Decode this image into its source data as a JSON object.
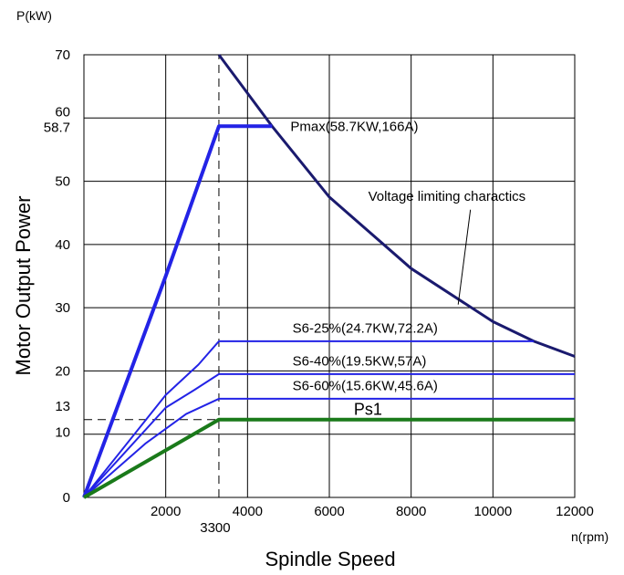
{
  "chart_data": {
    "type": "line",
    "xlabel": "Spindle Speed",
    "ylabel": "Motor Output Power",
    "x_unit": "n(rpm)",
    "y_unit": "P(kW)",
    "xlim": [
      0,
      12000
    ],
    "ylim": [
      0,
      70
    ],
    "x_ticks": [
      {
        "value": 2000,
        "label": "2000"
      },
      {
        "value": 4000,
        "label": "4000"
      },
      {
        "value": 6000,
        "label": "6000"
      },
      {
        "value": 8000,
        "label": "8000"
      },
      {
        "value": 10000,
        "label": "10000"
      },
      {
        "value": 12000,
        "label": "12000"
      }
    ],
    "extra_x_labels": [
      {
        "value": 3300,
        "label": "3300"
      }
    ],
    "y_ticks": [
      {
        "value": 0,
        "label": "0"
      },
      {
        "value": 10,
        "label": "10"
      },
      {
        "value": 13,
        "label": "13"
      },
      {
        "value": 20,
        "label": "20"
      },
      {
        "value": 30,
        "label": "30"
      },
      {
        "value": 40,
        "label": "40"
      },
      {
        "value": 50,
        "label": "50"
      },
      {
        "value": 58.7,
        "label": "58.7"
      },
      {
        "value": 60,
        "label": "60"
      },
      {
        "value": 70,
        "label": "70"
      }
    ],
    "grid_x": [
      2000,
      4000,
      6000,
      8000,
      10000
    ],
    "grid_y": [
      10,
      20,
      30,
      40,
      50,
      60
    ],
    "reference_lines": [
      {
        "axis": "x",
        "value": 3300,
        "to": 70
      },
      {
        "axis": "y",
        "value": 12.3,
        "to": 3300
      }
    ],
    "series": [
      {
        "name": "Voltage limiting charactics",
        "color": "#1a1a6e",
        "stroke_width": 3,
        "points": [
          [
            3300,
            70
          ],
          [
            4600,
            58.7
          ],
          [
            6000,
            47.5
          ],
          [
            8000,
            36.2
          ],
          [
            10000,
            27.8
          ],
          [
            11000,
            24.7
          ],
          [
            12000,
            22.3
          ]
        ]
      },
      {
        "name": "Pmax(58.7KW,166A)",
        "color": "#2323e6",
        "stroke_width": 4,
        "points": [
          [
            0,
            0
          ],
          [
            2000,
            35
          ],
          [
            3300,
            58.7
          ],
          [
            4600,
            58.7
          ]
        ]
      },
      {
        "name": "S6-25%(24.7KW,72.2A)",
        "color": "#2323e6",
        "stroke_width": 2,
        "points": [
          [
            0,
            0
          ],
          [
            2000,
            16.2
          ],
          [
            2800,
            21
          ],
          [
            3300,
            24.7
          ],
          [
            11000,
            24.7
          ]
        ]
      },
      {
        "name": "S6-40%(19.5KW,57A)",
        "color": "#2323e6",
        "stroke_width": 2,
        "points": [
          [
            0,
            0
          ],
          [
            2000,
            14.2
          ],
          [
            2700,
            17
          ],
          [
            3300,
            19.5
          ],
          [
            12000,
            19.5
          ]
        ]
      },
      {
        "name": "S6-60%(15.6KW,45.6A)",
        "color": "#2323e6",
        "stroke_width": 2,
        "points": [
          [
            0,
            0
          ],
          [
            1500,
            8.5
          ],
          [
            2500,
            13.2
          ],
          [
            3300,
            15.6
          ],
          [
            12000,
            15.6
          ]
        ]
      },
      {
        "name": "Ps1",
        "color": "#1a7a1a",
        "stroke_width": 4,
        "points": [
          [
            0,
            0
          ],
          [
            3300,
            12.3
          ],
          [
            12000,
            12.3
          ]
        ]
      }
    ],
    "annotations": [
      {
        "text": "Pmax(58.7KW,166A)",
        "x": 5050,
        "y": 58.7
      },
      {
        "text": "Voltage limiting charactics",
        "x": 6950,
        "y": 47.6
      },
      {
        "text": "S6-25%(24.7KW,72.2A)",
        "x": 5100,
        "y": 26.8
      },
      {
        "text": "S6-40%(19.5KW,57A)",
        "x": 5100,
        "y": 21.6
      },
      {
        "text": "S6-60%(15.6KW,45.6A)",
        "x": 5100,
        "y": 17.7
      },
      {
        "text": "Ps1",
        "x": 6600,
        "y": 13.8,
        "size": "large"
      }
    ],
    "leader_line": {
      "from": [
        9450,
        45.5
      ],
      "to": [
        9150,
        30.5
      ]
    }
  }
}
